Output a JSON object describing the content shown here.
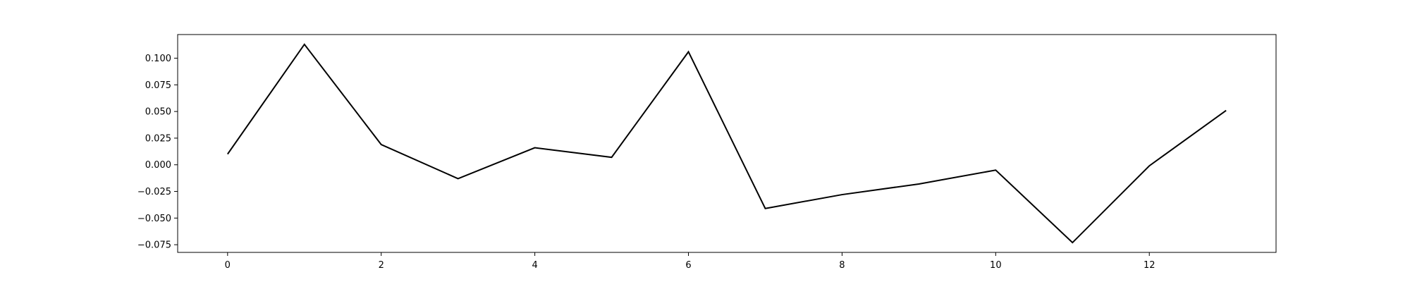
{
  "chart_data": {
    "type": "line",
    "title": "",
    "xlabel": "",
    "ylabel": "",
    "x": [
      0,
      1,
      2,
      3,
      4,
      5,
      6,
      7,
      8,
      9,
      10,
      11,
      12,
      13
    ],
    "series": [
      {
        "values": [
          0.01,
          0.113,
          0.019,
          -0.013,
          0.016,
          0.007,
          0.106,
          -0.041,
          -0.028,
          -0.018,
          -0.005,
          -0.073,
          -0.001,
          0.051
        ],
        "color": "#000000"
      }
    ],
    "xlim": [
      -0.65,
      13.65
    ],
    "ylim": [
      -0.0822,
      0.1222
    ],
    "xticks": [
      0,
      2,
      4,
      6,
      8,
      10,
      12
    ],
    "xtick_labels": [
      "0",
      "2",
      "4",
      "6",
      "8",
      "10",
      "12"
    ],
    "yticks": [
      -0.075,
      -0.05,
      -0.025,
      0.0,
      0.025,
      0.05,
      0.075,
      0.1
    ],
    "ytick_labels": [
      "−0.075",
      "−0.050",
      "−0.025",
      "0.000",
      "0.025",
      "0.050",
      "0.075",
      "0.100"
    ],
    "grid": false,
    "legend": "none"
  }
}
